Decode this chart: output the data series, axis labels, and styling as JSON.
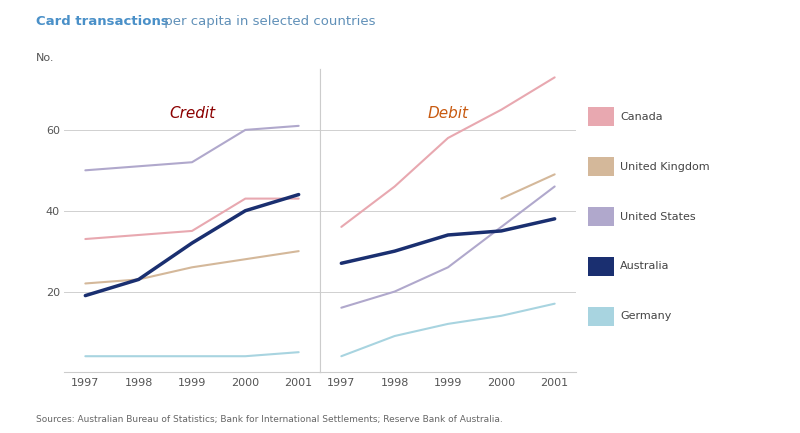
{
  "title_bold": "Card transactions",
  "title_regular": " per capita in selected countries",
  "ylabel": "No.",
  "source": "Sources: Australian Bureau of Statistics; Bank for International Settlements; Reserve Bank of Australia.",
  "years": [
    1997,
    1998,
    1999,
    2000,
    2001
  ],
  "credit": {
    "label": "Credit",
    "label_color": "#8b0000",
    "Canada": [
      33,
      34,
      35,
      43,
      43
    ],
    "United Kingdom": [
      22,
      23,
      26,
      28,
      30
    ],
    "United States": [
      50,
      51,
      52,
      60,
      61
    ],
    "Australia": [
      19,
      23,
      32,
      40,
      44
    ],
    "Germany": [
      4,
      4,
      4,
      4,
      5
    ]
  },
  "debit": {
    "label": "Debit",
    "label_color": "#c85a10",
    "Canada": [
      36,
      46,
      58,
      65,
      73
    ],
    "United Kingdom": [
      null,
      null,
      null,
      43,
      49
    ],
    "United States": [
      16,
      20,
      26,
      36,
      46
    ],
    "Australia": [
      27,
      30,
      34,
      35,
      38
    ],
    "Germany": [
      4,
      9,
      12,
      14,
      17
    ]
  },
  "colors": {
    "Canada": "#e8a8b0",
    "United Kingdom": "#d4b89a",
    "United States": "#b0a8cc",
    "Australia": "#1a2f70",
    "Germany": "#a8d4e0"
  },
  "line_widths": {
    "Canada": 1.5,
    "United Kingdom": 1.5,
    "United States": 1.5,
    "Australia": 2.5,
    "Germany": 1.5
  },
  "ylim": [
    0,
    75
  ],
  "yticks": [
    0,
    20,
    40,
    60
  ],
  "background_color": "#ffffff",
  "panel_bg": "#ffffff",
  "grid_color": "#d0d0d0",
  "title_color": "#4a90c8",
  "title_regular_color": "#6090b8",
  "axes_label_color": "#666666"
}
